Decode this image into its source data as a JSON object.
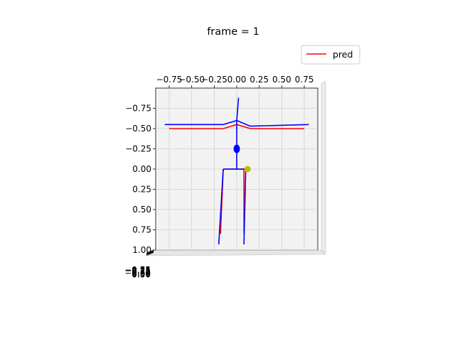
{
  "chart_data": {
    "type": "line",
    "title": "frame = 1",
    "legend": {
      "position": "top-right",
      "entries": [
        {
          "label": "pred",
          "color": "#ff0000"
        }
      ]
    },
    "x_axis": {
      "range": [
        -0.9,
        0.9
      ],
      "ticks": [
        "−0.75",
        "−0.50",
        "−0.25",
        "0.00",
        "0.25",
        "0.50",
        "0.75"
      ]
    },
    "y_axis": {
      "range": [
        -1.0,
        1.0
      ],
      "ticks": [
        "−0.75",
        "−0.50",
        "−0.25",
        "0.00",
        "0.25",
        "0.50",
        "0.75",
        "1.00"
      ]
    },
    "z_axis": {
      "ticks": [
        "−0.75",
        "−0.50",
        "−0.25",
        "0.00",
        "0.25",
        "0.50",
        "0.75"
      ]
    },
    "grid": true,
    "series": [
      {
        "name": "pred",
        "color": "#ff0000",
        "segments": [
          [
            [
              -0.75,
              -0.5
            ],
            [
              -0.15,
              -0.5
            ],
            [
              0.0,
              -0.55
            ],
            [
              0.15,
              -0.5
            ],
            [
              0.75,
              -0.5
            ]
          ],
          [
            [
              -0.15,
              0.0
            ],
            [
              0.08,
              0.0
            ]
          ],
          [
            [
              -0.15,
              0.0
            ],
            [
              -0.18,
              0.8
            ]
          ],
          [
            [
              0.08,
              0.0
            ],
            [
              0.08,
              0.8
            ]
          ]
        ]
      },
      {
        "name": "",
        "color": "#0000ff",
        "segments": [
          [
            [
              -0.8,
              -0.55
            ],
            [
              -0.15,
              -0.55
            ],
            [
              0.0,
              -0.6
            ],
            [
              0.15,
              -0.53
            ],
            [
              0.8,
              -0.55
            ]
          ],
          [
            [
              0.02,
              -0.88
            ],
            [
              0.0,
              -0.6
            ],
            [
              0.0,
              -0.25
            ],
            [
              0.0,
              0.0
            ]
          ],
          [
            [
              -0.15,
              0.0
            ],
            [
              0.1,
              0.0
            ]
          ],
          [
            [
              -0.15,
              0.0
            ],
            [
              -0.2,
              0.93
            ]
          ],
          [
            [
              0.1,
              0.0
            ],
            [
              0.08,
              0.93
            ]
          ]
        ],
        "points": [
          [
            0.0,
            -0.25
          ]
        ]
      }
    ],
    "markers": [
      {
        "x": 0.12,
        "y": 0.0,
        "color": "#bfbf00"
      }
    ]
  }
}
